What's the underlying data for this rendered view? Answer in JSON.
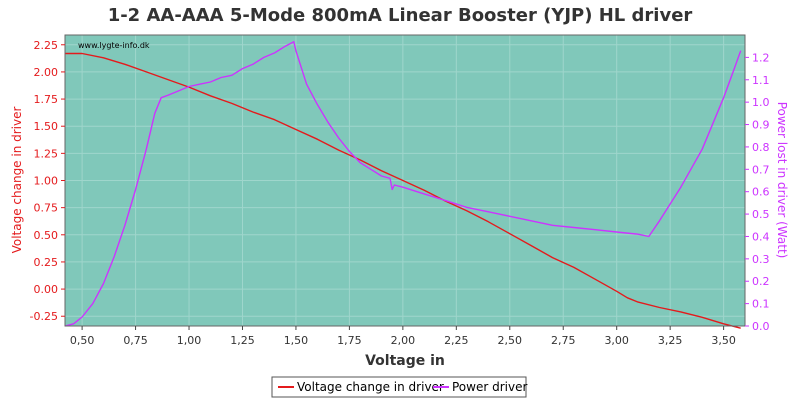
{
  "colors": {
    "plot_bg": "#80C8BA",
    "grid": "#9FD6CC",
    "voltage_series": "#E41A1C",
    "power_series": "#CC33FF",
    "left_axis": "#E41A1C",
    "right_axis": "#CC33FF"
  },
  "chart_data": {
    "type": "line",
    "title": "1-2 AA-AAA 5-Mode 800mA Linear Booster (YJP) HL driver",
    "watermark": "www.lygte-info.dk",
    "xlabel": "Voltage in",
    "ylabel_left": "Voltage change in driver",
    "ylabel_right": "Power lost in driver (Watt)",
    "xlim": [
      0.42,
      3.6
    ],
    "ylim_left": [
      -0.34,
      2.34
    ],
    "ylim_right": [
      0.0,
      1.3
    ],
    "x_ticks": [
      "0,50",
      "0,75",
      "1,00",
      "1,25",
      "1,50",
      "1,75",
      "2,00",
      "2,25",
      "2,50",
      "2,75",
      "3,00",
      "3,25",
      "3,50"
    ],
    "x_tick_values": [
      0.5,
      0.75,
      1.0,
      1.25,
      1.5,
      1.75,
      2.0,
      2.25,
      2.5,
      2.75,
      3.0,
      3.25,
      3.5
    ],
    "y_left_ticks": [
      "-0.25",
      "0.00",
      "0.25",
      "0.50",
      "0.75",
      "1.00",
      "1.25",
      "1.50",
      "1.75",
      "2.00",
      "2.25"
    ],
    "y_left_tick_values": [
      -0.25,
      0.0,
      0.25,
      0.5,
      0.75,
      1.0,
      1.25,
      1.5,
      1.75,
      2.0,
      2.25
    ],
    "y_right_ticks": [
      "0.0",
      "0.1",
      "0.2",
      "0.3",
      "0.4",
      "0.5",
      "0.6",
      "0.7",
      "0.8",
      "0.9",
      "1.0",
      "1.1",
      "1.2"
    ],
    "y_right_tick_values": [
      0.0,
      0.1,
      0.2,
      0.3,
      0.4,
      0.5,
      0.6,
      0.7,
      0.8,
      0.9,
      1.0,
      1.1,
      1.2
    ],
    "grid": true,
    "legend_position": "bottom-center",
    "series": [
      {
        "name": "Voltage change in driver",
        "axis": "left",
        "x": [
          0.42,
          0.5,
          0.6,
          0.7,
          0.8,
          0.9,
          1.0,
          1.1,
          1.2,
          1.3,
          1.4,
          1.5,
          1.6,
          1.7,
          1.8,
          1.9,
          2.0,
          2.1,
          2.2,
          2.3,
          2.4,
          2.5,
          2.6,
          2.7,
          2.8,
          2.9,
          3.0,
          3.05,
          3.1,
          3.2,
          3.3,
          3.4,
          3.5,
          3.58
        ],
        "y": [
          2.17,
          2.17,
          2.13,
          2.07,
          2.0,
          1.93,
          1.86,
          1.78,
          1.71,
          1.63,
          1.56,
          1.47,
          1.38,
          1.28,
          1.19,
          1.09,
          1.0,
          0.91,
          0.81,
          0.72,
          0.62,
          0.51,
          0.4,
          0.29,
          0.2,
          0.09,
          -0.02,
          -0.08,
          -0.12,
          -0.17,
          -0.21,
          -0.26,
          -0.32,
          -0.36
        ]
      },
      {
        "name": "Power driver",
        "axis": "right",
        "x": [
          0.42,
          0.46,
          0.5,
          0.55,
          0.6,
          0.65,
          0.7,
          0.75,
          0.8,
          0.84,
          0.87,
          0.9,
          0.95,
          1.0,
          1.05,
          1.1,
          1.15,
          1.2,
          1.25,
          1.3,
          1.35,
          1.4,
          1.45,
          1.49,
          1.5,
          1.55,
          1.6,
          1.65,
          1.7,
          1.75,
          1.8,
          1.85,
          1.9,
          1.94,
          1.95,
          1.96,
          2.0,
          2.1,
          2.2,
          2.3,
          2.4,
          2.5,
          2.6,
          2.7,
          2.8,
          2.9,
          3.0,
          3.1,
          3.15,
          3.2,
          3.3,
          3.4,
          3.5,
          3.55,
          3.58
        ],
        "y": [
          0.0,
          0.01,
          0.04,
          0.1,
          0.19,
          0.31,
          0.45,
          0.61,
          0.79,
          0.95,
          1.02,
          1.03,
          1.05,
          1.07,
          1.08,
          1.09,
          1.11,
          1.12,
          1.15,
          1.17,
          1.2,
          1.22,
          1.25,
          1.27,
          1.23,
          1.08,
          0.99,
          0.91,
          0.84,
          0.78,
          0.73,
          0.7,
          0.67,
          0.66,
          0.61,
          0.63,
          0.62,
          0.59,
          0.56,
          0.53,
          0.51,
          0.49,
          0.47,
          0.45,
          0.44,
          0.43,
          0.42,
          0.41,
          0.4,
          0.47,
          0.62,
          0.79,
          1.02,
          1.15,
          1.23
        ]
      }
    ]
  }
}
